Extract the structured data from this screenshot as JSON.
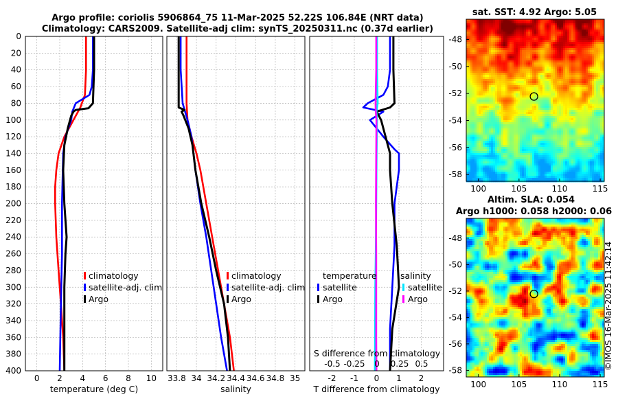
{
  "header": {
    "line1": "Argo profile: coriolis 5906864_75 11-Mar-2025 52.22S 106.84E (NRT data)",
    "line2": "Climatology: CARS2009. Satellite-adj clim: synTS_20250311.nc (0.37d earlier)"
  },
  "watermark": "©IMOS 16-Mar-2025 11:42:14",
  "colors": {
    "climatology": "#ff0000",
    "satellite": "#0000ff",
    "argo": "#000000",
    "sat_salinity": "#00e0ff",
    "argo_salinity": "#ff00ff"
  },
  "chart_data": [
    {
      "type": "line",
      "id": "temperature",
      "xlabel": "temperature (deg C)",
      "ylabel": "",
      "xlim": [
        -1,
        11
      ],
      "ylim": [
        400,
        0
      ],
      "xticks": [
        0,
        2,
        4,
        6,
        8,
        10
      ],
      "yticks": [
        0,
        20,
        40,
        60,
        80,
        100,
        120,
        140,
        160,
        180,
        200,
        220,
        240,
        260,
        280,
        300,
        320,
        340,
        360,
        380,
        400
      ],
      "grid": true,
      "legend": [
        "climatology",
        "satellite-adj. clim",
        "Argo"
      ],
      "legend_position": "lower-right",
      "series": [
        {
          "name": "climatology",
          "color": "red",
          "depth": [
            0,
            40,
            70,
            85,
            100,
            120,
            140,
            160,
            180,
            200,
            240,
            280,
            320,
            360,
            400
          ],
          "values": [
            4.3,
            4.3,
            4.2,
            3.8,
            3.2,
            2.4,
            1.9,
            1.7,
            1.6,
            1.6,
            1.7,
            1.9,
            2.1,
            2.3,
            2.4
          ]
        },
        {
          "name": "satellite-adj. clim",
          "color": "blue",
          "depth": [
            0,
            40,
            60,
            70,
            80,
            90,
            100,
            120,
            140,
            200,
            260,
            320,
            400
          ],
          "values": [
            4.9,
            4.9,
            4.8,
            4.6,
            3.4,
            3.1,
            3.0,
            2.5,
            2.3,
            2.2,
            2.2,
            2.1,
            2.0
          ]
        },
        {
          "name": "Argo",
          "color": "black",
          "depth": [
            0,
            40,
            80,
            86,
            88,
            90,
            95,
            110,
            130,
            160,
            200,
            240,
            260,
            300,
            340,
            400
          ],
          "values": [
            5.0,
            5.0,
            4.9,
            4.5,
            3.4,
            3.2,
            3.0,
            2.7,
            2.4,
            2.3,
            2.4,
            2.6,
            2.5,
            2.4,
            2.4,
            2.4
          ]
        }
      ]
    },
    {
      "type": "line",
      "id": "salinity",
      "xlabel": "salinity",
      "ylabel": "",
      "xlim": [
        33.7,
        35.1
      ],
      "ylim": [
        400,
        0
      ],
      "xticks": [
        33.8,
        34,
        34.2,
        34.4,
        34.6,
        34.8,
        35
      ],
      "xtick_labels": [
        "33.8",
        "34",
        "34.2",
        "34.4",
        "34.6",
        "34.8",
        "35"
      ],
      "grid": true,
      "legend": [
        "climatology",
        "satellite-adj. clim",
        "Argo"
      ],
      "legend_position": "lower-right",
      "series": [
        {
          "name": "climatology",
          "color": "red",
          "depth": [
            0,
            40,
            80,
            100,
            120,
            140,
            160,
            200,
            240,
            280,
            320,
            360,
            400
          ],
          "values": [
            33.9,
            33.9,
            33.9,
            33.91,
            33.95,
            34.0,
            34.04,
            34.1,
            34.16,
            34.22,
            34.28,
            34.34,
            34.38
          ]
        },
        {
          "name": "satellite-adj. clim",
          "color": "blue",
          "depth": [
            0,
            40,
            80,
            100,
            120,
            160,
            200,
            240,
            280,
            320,
            360,
            400
          ],
          "values": [
            33.84,
            33.84,
            33.86,
            33.91,
            33.95,
            33.99,
            34.04,
            34.1,
            34.15,
            34.2,
            34.25,
            34.31
          ]
        },
        {
          "name": "Argo",
          "color": "black",
          "depth": [
            0,
            40,
            85,
            88,
            90,
            95,
            110,
            130,
            160,
            200,
            240,
            280,
            320,
            360,
            400
          ],
          "values": [
            33.82,
            33.82,
            33.82,
            33.88,
            33.85,
            33.87,
            33.92,
            33.96,
            33.99,
            34.05,
            34.13,
            34.2,
            34.28,
            34.32,
            34.34
          ]
        }
      ]
    },
    {
      "type": "line",
      "id": "differences",
      "xlabel": "T difference from climatology",
      "secondary_xlabel": "S difference from climatology",
      "xlim": [
        -3,
        3
      ],
      "ylim": [
        400,
        0
      ],
      "xticks": [
        -2,
        -1,
        0,
        1,
        2
      ],
      "xtick_labels": [
        "-2",
        "-1",
        "0",
        "1",
        "2"
      ],
      "secondary_ticks": [
        "-0.5",
        "-0.25",
        "0",
        "0.25",
        "0.5"
      ],
      "grid": true,
      "legend_temperature": {
        "title": "temperature",
        "items": [
          "satellite",
          "Argo"
        ]
      },
      "legend_salinity": {
        "title": "salinity",
        "items": [
          "satellite",
          "Argo"
        ]
      },
      "series": [
        {
          "name": "temperature satellite",
          "color": "blue",
          "depth": [
            0,
            40,
            60,
            70,
            80,
            85,
            90,
            100,
            120,
            135,
            140,
            160,
            200,
            250,
            300,
            350,
            400
          ],
          "values": [
            0.6,
            0.6,
            0.5,
            0.3,
            -0.4,
            -0.6,
            0.3,
            -0.3,
            0.3,
            0.8,
            1.0,
            1.0,
            0.8,
            0.8,
            0.7,
            0.6,
            0.6
          ]
        },
        {
          "name": "temperature Argo",
          "color": "black",
          "depth": [
            0,
            40,
            80,
            85,
            90,
            100,
            120,
            140,
            160,
            200,
            250,
            300,
            350,
            400
          ],
          "values": [
            0.75,
            0.75,
            0.8,
            0.6,
            0.0,
            0.2,
            0.4,
            0.6,
            0.6,
            0.7,
            0.9,
            1.0,
            0.7,
            0.6
          ]
        },
        {
          "name": "salinity satellite",
          "color": "cyan",
          "depth": [
            0,
            40,
            80,
            90,
            100,
            140,
            200,
            260,
            300,
            360,
            400
          ],
          "values": [
            0.02,
            0.02,
            0.05,
            -0.01,
            0.02,
            0.0,
            -0.02,
            -0.04,
            -0.06,
            -0.07,
            -0.08
          ]
        },
        {
          "name": "salinity Argo",
          "color": "magenta",
          "depth": [
            0,
            40,
            80,
            90,
            100,
            140,
            200,
            260,
            300,
            360,
            400
          ],
          "values": [
            -0.02,
            -0.02,
            -0.05,
            -0.04,
            -0.01,
            -0.02,
            -0.03,
            -0.02,
            -0.02,
            -0.02,
            -0.01
          ]
        }
      ]
    },
    {
      "type": "heatmap",
      "id": "sst_map",
      "title": "sat. SST: 4.92 Argo: 5.05",
      "xlim": [
        98.5,
        115.5
      ],
      "ylim": [
        -58.5,
        -46.5
      ],
      "xticks": [
        100,
        105,
        110,
        115
      ],
      "yticks": [
        -48,
        -50,
        -52,
        -54,
        -56,
        -58
      ],
      "marker": {
        "lon": 106.84,
        "lat": -52.22
      }
    },
    {
      "type": "heatmap",
      "id": "sla_map",
      "title": "Altim. SLA: 0.054",
      "subtitle": "Argo h1000: 0.058 h2000: 0.06",
      "xlim": [
        98.5,
        115.5
      ],
      "ylim": [
        -58.5,
        -46.5
      ],
      "xticks": [
        100,
        105,
        110,
        115
      ],
      "yticks": [
        -48,
        -50,
        -52,
        -54,
        -56,
        -58
      ],
      "marker": {
        "lon": 106.84,
        "lat": -52.22
      }
    }
  ]
}
